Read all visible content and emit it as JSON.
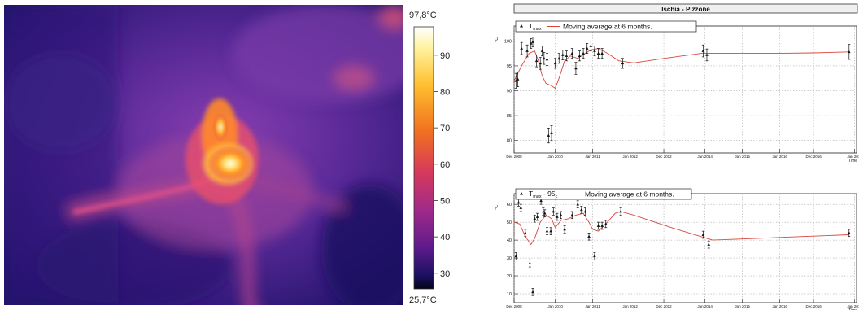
{
  "thermal_image": {
    "max_label": "97,8°C",
    "min_label": "25,7°C",
    "scale_ticks": [
      "90",
      "80",
      "70",
      "60",
      "50",
      "40",
      "30"
    ],
    "scale_values": [
      90,
      80,
      70,
      60,
      50,
      40,
      30
    ],
    "scale_min": 25.7,
    "scale_max": 97.8
  },
  "figure_title": "Ischia - Pizzone",
  "chart_data": [
    {
      "type": "scatter",
      "ylabel": "°C",
      "xlabel": "Time",
      "legend": {
        "marker_label_main": "T",
        "marker_label_sub": "max",
        "line_label": "Moving average at 6 months.",
        "placement": "top-left"
      },
      "x_ticks": [
        "Dec 2008",
        "Jan 2010",
        "Jan 2011",
        "Jan 2012",
        "Dec 2012",
        "Jan 2014",
        "Jan 2015",
        "Jan 2016",
        "Dec 2016",
        "Jan 2018"
      ],
      "x_tick_pos": [
        0,
        1.1,
        2.1,
        3.1,
        4,
        5.1,
        6.1,
        7.1,
        8,
        9.1
      ],
      "y_ticks": [
        "80",
        "85",
        "90",
        "95",
        "100"
      ],
      "y_tick_vals": [
        80,
        85,
        90,
        95,
        100
      ],
      "ylim": [
        77.5,
        103
      ],
      "grid": true,
      "points": [
        [
          0.05,
          92,
          1.5
        ],
        [
          0.1,
          92.3,
          1.5
        ],
        [
          0.2,
          98.5,
          1.2
        ],
        [
          0.35,
          98,
          1.2
        ],
        [
          0.45,
          99.5,
          1
        ],
        [
          0.5,
          99.8,
          1
        ],
        [
          0.6,
          96,
          1.2
        ],
        [
          0.7,
          95.5,
          1.2
        ],
        [
          0.75,
          98,
          1
        ],
        [
          0.8,
          96.5,
          1.2
        ],
        [
          0.88,
          96.3,
          1.2
        ],
        [
          0.92,
          81,
          1.5
        ],
        [
          1.0,
          81.5,
          1.5
        ],
        [
          1.1,
          95.5,
          1
        ],
        [
          1.2,
          96.5,
          1
        ],
        [
          1.3,
          97.2,
          1
        ],
        [
          1.4,
          97,
          1
        ],
        [
          1.55,
          97.5,
          1
        ],
        [
          1.65,
          94.5,
          1.2
        ],
        [
          1.75,
          97,
          1
        ],
        [
          1.85,
          97.5,
          1
        ],
        [
          1.95,
          98.5,
          1
        ],
        [
          2.05,
          99,
          1
        ],
        [
          2.15,
          98,
          1
        ],
        [
          2.25,
          97.5,
          1
        ],
        [
          2.35,
          97.5,
          1
        ],
        [
          2.9,
          95.5,
          1
        ],
        [
          5.05,
          98,
          1.2
        ],
        [
          5.15,
          97.2,
          1.2
        ],
        [
          8.95,
          97.8,
          1.5
        ]
      ],
      "moving_average": [
        [
          0,
          92
        ],
        [
          0.2,
          95
        ],
        [
          0.4,
          97.5
        ],
        [
          0.55,
          98
        ],
        [
          0.65,
          96
        ],
        [
          0.75,
          93
        ],
        [
          0.85,
          91.5
        ],
        [
          1.0,
          91
        ],
        [
          1.1,
          90.5
        ],
        [
          1.2,
          92.5
        ],
        [
          1.35,
          96
        ],
        [
          1.5,
          97
        ],
        [
          1.7,
          96.5
        ],
        [
          1.9,
          97.5
        ],
        [
          2.05,
          98.2
        ],
        [
          2.25,
          98.5
        ],
        [
          2.5,
          97.5
        ],
        [
          2.8,
          96
        ],
        [
          3.2,
          95.6
        ],
        [
          4.0,
          96.5
        ],
        [
          5.0,
          97.5
        ],
        [
          6.0,
          97.5
        ],
        [
          7.0,
          97.5
        ],
        [
          8.0,
          97.6
        ],
        [
          8.95,
          97.8
        ]
      ]
    },
    {
      "type": "scatter",
      "ylabel": "°C",
      "xlabel": "Time",
      "legend": {
        "marker_label_main": "T",
        "marker_label_sub": "max",
        "marker_label_tail": " - 95",
        "marker_label_tail_sub": "c",
        "line_label": "Moving average at 6 months.",
        "placement": "top-left"
      },
      "x_ticks": [
        "Dec 2008",
        "Jan 2010",
        "Jan 2011",
        "Jan 2012",
        "Dec 2012",
        "Jan 2014",
        "Jan 2015",
        "Jan 2016",
        "Dec 2016",
        "Jan 2018"
      ],
      "x_tick_pos": [
        0,
        1.1,
        2.1,
        3.1,
        4,
        5.1,
        6.1,
        7.1,
        8,
        9.1
      ],
      "y_ticks": [
        "10",
        "20",
        "30",
        "40",
        "50",
        "60"
      ],
      "y_tick_vals": [
        10,
        20,
        30,
        40,
        50,
        60
      ],
      "ylim": [
        5,
        66
      ],
      "grid": true,
      "points": [
        [
          0.05,
          31,
          2
        ],
        [
          0.12,
          61,
          2
        ],
        [
          0.18,
          58,
          2
        ],
        [
          0.3,
          44,
          2
        ],
        [
          0.42,
          27,
          2
        ],
        [
          0.5,
          11,
          2
        ],
        [
          0.55,
          52,
          2
        ],
        [
          0.62,
          53,
          2
        ],
        [
          0.72,
          62,
          2
        ],
        [
          0.78,
          56,
          2
        ],
        [
          0.82,
          55,
          2
        ],
        [
          0.88,
          45,
          2
        ],
        [
          0.98,
          45,
          2
        ],
        [
          1.05,
          56,
          2
        ],
        [
          1.15,
          53,
          2
        ],
        [
          1.25,
          54,
          2
        ],
        [
          1.35,
          46,
          2
        ],
        [
          1.55,
          54,
          2
        ],
        [
          1.7,
          60,
          2
        ],
        [
          1.8,
          57,
          2
        ],
        [
          1.9,
          56,
          2
        ],
        [
          2.0,
          42,
          2
        ],
        [
          2.15,
          31,
          2
        ],
        [
          2.25,
          48,
          2
        ],
        [
          2.35,
          48,
          2
        ],
        [
          2.45,
          49,
          2
        ],
        [
          2.85,
          56,
          2
        ],
        [
          5.05,
          43,
          2
        ],
        [
          5.2,
          37.5,
          2
        ],
        [
          8.95,
          44,
          2
        ]
      ],
      "moving_average": [
        [
          0,
          50
        ],
        [
          0.15,
          49
        ],
        [
          0.3,
          42
        ],
        [
          0.45,
          37.5
        ],
        [
          0.55,
          41
        ],
        [
          0.7,
          50
        ],
        [
          0.85,
          54
        ],
        [
          1.0,
          52
        ],
        [
          1.1,
          47
        ],
        [
          1.25,
          51
        ],
        [
          1.45,
          52
        ],
        [
          1.65,
          54
        ],
        [
          1.85,
          55
        ],
        [
          2.0,
          50
        ],
        [
          2.1,
          46
        ],
        [
          2.25,
          45
        ],
        [
          2.45,
          49
        ],
        [
          2.7,
          55
        ],
        [
          2.85,
          56
        ],
        [
          3.2,
          54
        ],
        [
          4.2,
          47
        ],
        [
          5.3,
          40
        ],
        [
          6.5,
          41
        ],
        [
          7.7,
          42
        ],
        [
          8.95,
          43
        ]
      ]
    }
  ]
}
